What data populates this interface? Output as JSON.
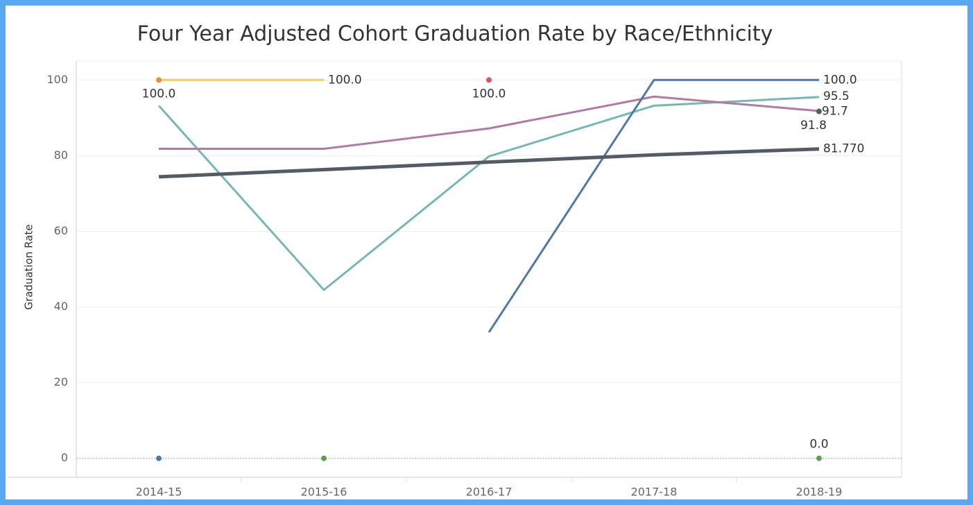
{
  "chart_data": {
    "type": "line",
    "title": "Four Year Adjusted Cohort Graduation Rate by Race/Ethnicity",
    "y_label": "Graduation Rate",
    "categories": [
      "2014-15",
      "2015-16",
      "2016-17",
      "2017-18",
      "2018-19"
    ],
    "ylim": [
      -5,
      105
    ],
    "yticks": [
      0,
      20,
      40,
      60,
      80,
      100
    ],
    "grid": true,
    "series": [
      {
        "color": "#f1ce63",
        "values": [
          100,
          100,
          null,
          null,
          null
        ],
        "value_labels": [
          null,
          "100.0",
          null,
          null,
          null
        ]
      },
      {
        "color": "#f28e2b",
        "values": [
          100,
          null,
          null,
          null,
          null
        ],
        "value_labels": [
          "100.0",
          null,
          null,
          null,
          null
        ]
      },
      {
        "color": "#e15759",
        "values": [
          null,
          null,
          100,
          null,
          null
        ],
        "value_labels": [
          null,
          null,
          "100.0",
          null,
          null
        ]
      },
      {
        "color": "#76b7b2",
        "values": [
          93.2,
          44.5,
          79.8,
          93.2,
          95.5
        ],
        "value_labels": [
          null,
          null,
          null,
          null,
          "95.5"
        ]
      },
      {
        "color": "#b07aa1",
        "values": [
          81.8,
          81.8,
          87.2,
          95.6,
          91.8
        ],
        "value_labels": [
          null,
          null,
          null,
          null,
          "91.8"
        ]
      },
      {
        "color": "#555b64",
        "values": [
          null,
          null,
          null,
          null,
          91.7
        ],
        "value_labels": [
          null,
          null,
          null,
          null,
          "91.7"
        ]
      },
      {
        "color": "#4e79a7",
        "values": [
          0,
          null,
          33.3,
          100,
          100
        ],
        "value_labels": [
          null,
          null,
          null,
          null,
          "100.0"
        ]
      },
      {
        "color": "#59a14f",
        "values": [
          null,
          0,
          null,
          null,
          0
        ],
        "value_labels": [
          null,
          null,
          null,
          null,
          "0.0"
        ]
      },
      {
        "color": "#555b64",
        "width": 5,
        "values": [
          74.4,
          76.3,
          78.3,
          80.2,
          81.77
        ],
        "value_labels": [
          null,
          null,
          null,
          null,
          "81.770"
        ]
      }
    ]
  }
}
